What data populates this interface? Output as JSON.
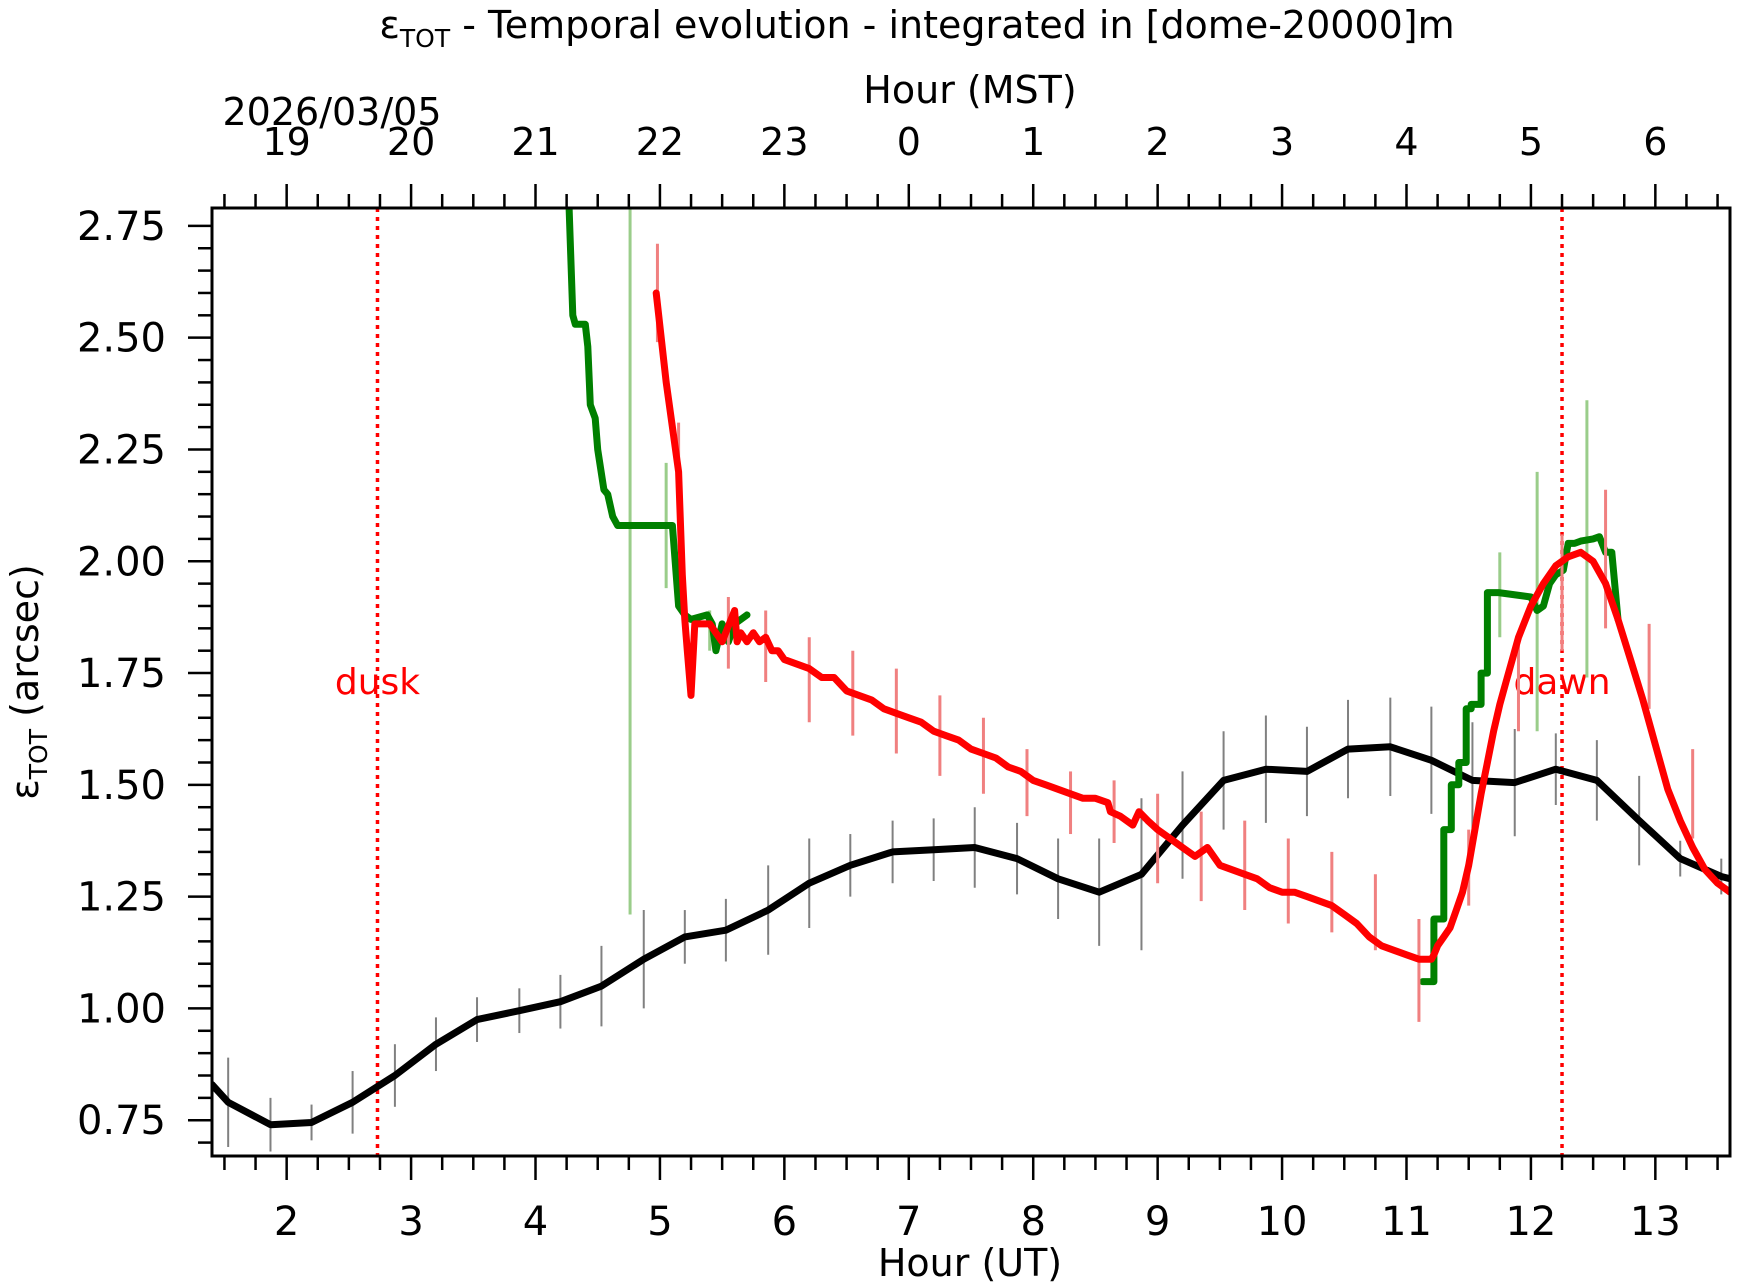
{
  "chart_data": {
    "type": "line",
    "title_main": "ε",
    "title_sub": "TOT",
    "title_rest": " - Temporal evolution - integrated in [dome-20000]m",
    "ylabel_main": "ε",
    "ylabel_sub": "TOT",
    "ylabel_rest": " (arcsec)",
    "xlabel": "Hour (UT)",
    "x2label": "Hour (MST)",
    "date_label": "2026/03/05",
    "xlim": [
      1.4,
      13.6
    ],
    "ylim": [
      0.67,
      2.79
    ],
    "x_ticks": [
      "2",
      "3",
      "4",
      "5",
      "6",
      "7",
      "8",
      "9",
      "10",
      "11",
      "12",
      "13"
    ],
    "x2_ticks": [
      "19",
      "20",
      "21",
      "22",
      "23",
      "0",
      "1",
      "2",
      "3",
      "4",
      "5",
      "6"
    ],
    "y_ticks": [
      "0.75",
      "1.00",
      "1.25",
      "1.50",
      "1.75",
      "2.00",
      "2.25",
      "2.50",
      "2.75"
    ],
    "grid": false,
    "annotations": [
      {
        "text": "dusk",
        "x": 2.73,
        "color": "#ff0000"
      },
      {
        "text": "dawn",
        "x": 12.25,
        "color": "#ff0000"
      }
    ],
    "series": [
      {
        "color": "#000000",
        "errbar_color": "#808080",
        "x": [
          1.4,
          1.53,
          1.87,
          2.2,
          2.53,
          2.87,
          3.2,
          3.53,
          3.87,
          4.2,
          4.53,
          4.87,
          5.2,
          5.53,
          5.87,
          6.2,
          6.53,
          6.87,
          7.2,
          7.53,
          7.87,
          8.2,
          8.53,
          8.87,
          9.2,
          9.53,
          9.87,
          10.2,
          10.53,
          10.87,
          11.2,
          11.53,
          11.87,
          12.2,
          12.53,
          12.87,
          13.2,
          13.53,
          13.6
        ],
        "y": [
          0.83,
          0.79,
          0.74,
          0.745,
          0.79,
          0.85,
          0.92,
          0.975,
          0.995,
          1.015,
          1.05,
          1.11,
          1.16,
          1.175,
          1.22,
          1.28,
          1.32,
          1.35,
          1.355,
          1.36,
          1.335,
          1.29,
          1.26,
          1.3,
          1.41,
          1.51,
          1.535,
          1.53,
          1.58,
          1.585,
          1.555,
          1.51,
          1.505,
          1.535,
          1.51,
          1.42,
          1.335,
          1.295,
          1.29
        ],
        "yerr": [
          0,
          0.1,
          0.06,
          0.04,
          0.07,
          0.07,
          0.06,
          0.05,
          0.05,
          0.06,
          0.09,
          0.11,
          0.06,
          0.07,
          0.1,
          0.1,
          0.07,
          0.07,
          0.07,
          0.09,
          0.08,
          0.09,
          0.12,
          0.17,
          0.12,
          0.11,
          0.12,
          0.1,
          0.11,
          0.11,
          0.12,
          0.13,
          0.12,
          0.08,
          0.09,
          0.1,
          0.04,
          0.04,
          0
        ]
      },
      {
        "color": "#008000",
        "errbar_color": "#9acd8a",
        "x": [
          4.27,
          4.3,
          4.32,
          4.4,
          4.42,
          4.44,
          4.48,
          4.5,
          4.55,
          4.58,
          4.62,
          4.66,
          4.7,
          4.74,
          5.0,
          5.1,
          5.15,
          5.2,
          5.25,
          5.38,
          5.42,
          5.45,
          5.5,
          5.55,
          5.6,
          5.65,
          5.7
        ],
        "y": [
          2.79,
          2.55,
          2.53,
          2.53,
          2.48,
          2.35,
          2.32,
          2.25,
          2.16,
          2.15,
          2.1,
          2.08,
          2.08,
          2.08,
          2.08,
          2.08,
          1.9,
          1.88,
          1.87,
          1.88,
          1.86,
          1.8,
          1.86,
          1.82,
          1.86,
          1.87,
          1.88
        ],
        "errx": [
          4.76,
          5.05,
          5.4
        ],
        "err_lo": [
          1.21,
          1.94,
          1.8
        ],
        "err_hi": [
          2.79,
          2.22,
          1.89
        ]
      },
      {
        "color": "#008000",
        "errbar_color": "#9acd8a",
        "x": [
          11.13,
          11.22,
          11.22,
          11.3,
          11.3,
          11.36,
          11.36,
          11.42,
          11.42,
          11.48,
          11.48,
          11.52,
          11.52,
          11.6,
          11.6,
          11.65,
          11.65,
          11.7,
          11.74,
          12.0,
          12.05,
          12.1,
          12.15,
          12.2,
          12.26,
          12.3,
          12.35,
          12.4,
          12.5,
          12.55,
          12.6,
          12.65,
          12.7
        ],
        "y": [
          1.06,
          1.06,
          1.2,
          1.2,
          1.4,
          1.4,
          1.5,
          1.5,
          1.55,
          1.55,
          1.67,
          1.67,
          1.68,
          1.68,
          1.75,
          1.75,
          1.93,
          1.93,
          1.93,
          1.92,
          1.89,
          1.9,
          1.95,
          1.97,
          1.98,
          2.04,
          2.04,
          2.045,
          2.05,
          2.055,
          2.02,
          2.02,
          1.87
        ],
        "errx": [
          11.75,
          12.05,
          12.45
        ],
        "err_lo": [
          1.83,
          1.62,
          1.74
        ],
        "err_hi": [
          2.02,
          2.2,
          2.36
        ]
      },
      {
        "color": "#ff0000",
        "errbar_color": "#f08080",
        "x": [
          4.97,
          5.05,
          5.15,
          5.18,
          5.2,
          5.22,
          5.25,
          5.28,
          5.32,
          5.4,
          5.5,
          5.6,
          5.62,
          5.65,
          5.7,
          5.75,
          5.8,
          5.85,
          5.9,
          5.95,
          6.0,
          6.1,
          6.2,
          6.3,
          6.4,
          6.5,
          6.6,
          6.7,
          6.8,
          6.9,
          7.0,
          7.1,
          7.2,
          7.3,
          7.4,
          7.5,
          7.6,
          7.7,
          7.8,
          7.9,
          8.0,
          8.1,
          8.2,
          8.3,
          8.4,
          8.5,
          8.6,
          8.62,
          8.7,
          8.8,
          8.85,
          8.92,
          9.0,
          9.1,
          9.2,
          9.3,
          9.4,
          9.5,
          9.6,
          9.7,
          9.8,
          9.9,
          10.0,
          10.1,
          10.2,
          10.3,
          10.4,
          10.5,
          10.6,
          10.7,
          10.8,
          10.9,
          11.0,
          11.1,
          11.2,
          11.22,
          11.25,
          11.3,
          11.35,
          11.4,
          11.45,
          11.5,
          11.55,
          11.6,
          11.65,
          11.7,
          11.75,
          11.8,
          11.85,
          11.9,
          12.0,
          12.1,
          12.2,
          12.3,
          12.4,
          12.5,
          12.6,
          12.7,
          12.8,
          12.9,
          13.0,
          13.1,
          13.2,
          13.3,
          13.4,
          13.5,
          13.6
        ],
        "y": [
          2.6,
          2.4,
          2.2,
          1.97,
          1.87,
          1.8,
          1.7,
          1.86,
          1.86,
          1.86,
          1.82,
          1.89,
          1.82,
          1.84,
          1.82,
          1.84,
          1.82,
          1.83,
          1.8,
          1.8,
          1.78,
          1.77,
          1.76,
          1.74,
          1.74,
          1.71,
          1.7,
          1.69,
          1.67,
          1.66,
          1.65,
          1.64,
          1.62,
          1.61,
          1.6,
          1.58,
          1.57,
          1.56,
          1.54,
          1.53,
          1.51,
          1.5,
          1.49,
          1.48,
          1.47,
          1.47,
          1.46,
          1.44,
          1.43,
          1.41,
          1.44,
          1.42,
          1.4,
          1.38,
          1.36,
          1.34,
          1.36,
          1.32,
          1.31,
          1.3,
          1.29,
          1.27,
          1.26,
          1.26,
          1.25,
          1.24,
          1.23,
          1.21,
          1.19,
          1.16,
          1.14,
          1.13,
          1.12,
          1.11,
          1.11,
          1.12,
          1.14,
          1.16,
          1.18,
          1.22,
          1.26,
          1.32,
          1.4,
          1.48,
          1.55,
          1.62,
          1.68,
          1.73,
          1.78,
          1.83,
          1.9,
          1.95,
          1.99,
          2.01,
          2.02,
          2.0,
          1.95,
          1.87,
          1.78,
          1.69,
          1.59,
          1.49,
          1.42,
          1.36,
          1.31,
          1.28,
          1.26
        ],
        "errx": [
          4.98,
          5.15,
          5.55,
          5.85,
          6.2,
          6.55,
          6.9,
          7.25,
          7.6,
          7.95,
          8.3,
          8.65,
          9.0,
          9.35,
          9.7,
          10.05,
          10.4,
          10.75,
          11.1,
          11.5,
          11.9,
          12.25,
          12.6,
          12.95,
          13.3
        ],
        "err_lo": [
          2.49,
          2.14,
          1.76,
          1.73,
          1.64,
          1.61,
          1.57,
          1.52,
          1.48,
          1.43,
          1.39,
          1.37,
          1.28,
          1.24,
          1.22,
          1.19,
          1.17,
          1.13,
          0.97,
          1.23,
          1.62,
          1.8,
          1.85,
          1.67,
          1.38
        ],
        "err_hi": [
          2.71,
          2.31,
          1.92,
          1.89,
          1.83,
          1.8,
          1.76,
          1.7,
          1.65,
          1.58,
          1.53,
          1.51,
          1.48,
          1.44,
          1.42,
          1.38,
          1.35,
          1.3,
          1.2,
          1.4,
          1.84,
          2.06,
          2.16,
          1.86,
          1.58
        ]
      }
    ]
  }
}
